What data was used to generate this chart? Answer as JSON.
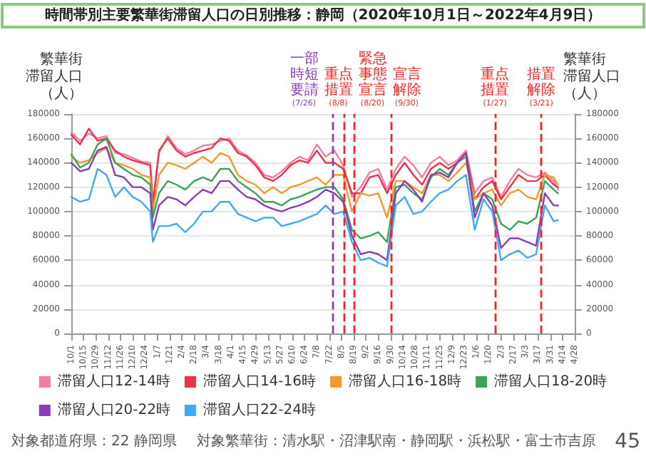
{
  "chart_data": {
    "type": "line",
    "title": "時間帯別主要繁華街滞留人口の日別推移：静岡（2020年10月1日～2022年4月9日）",
    "ylabel": "繁華街滞留人口（人）",
    "y2label": "繁華街滞留人口（人）",
    "annotations": [
      "対象都道府県：22 静岡県",
      "対象繁華街：清水駅・沼津駅南・静岡駅・浜松駅・富士市吉原",
      "45"
    ],
    "x": [
      "2020-10-01",
      "2020-10-11",
      "2020-10-21",
      "2020-10-31",
      "2020-11-10",
      "2020-11-20",
      "2020-11-30",
      "2020-12-10",
      "2020-12-20",
      "2020-12-30",
      "2021-01-02",
      "2021-01-09",
      "2021-01-19",
      "2021-01-29",
      "2021-02-08",
      "2021-02-18",
      "2021-02-28",
      "2021-03-10",
      "2021-03-20",
      "2021-03-30",
      "2021-04-09",
      "2021-04-19",
      "2021-04-29",
      "2021-05-09",
      "2021-05-19",
      "2021-05-29",
      "2021-06-08",
      "2021-06-18",
      "2021-06-28",
      "2021-07-08",
      "2021-07-18",
      "2021-07-28",
      "2021-08-07",
      "2021-08-17",
      "2021-08-27",
      "2021-09-06",
      "2021-09-16",
      "2021-09-26",
      "2021-10-06",
      "2021-10-16",
      "2021-10-26",
      "2021-11-05",
      "2021-11-15",
      "2021-11-25",
      "2021-12-05",
      "2021-12-15",
      "2021-12-25",
      "2022-01-04",
      "2022-01-14",
      "2022-01-24",
      "2022-02-03",
      "2022-02-13",
      "2022-02-23",
      "2022-03-05",
      "2022-03-15",
      "2022-03-25",
      "2022-04-04",
      "2022-04-09"
    ],
    "series": [
      {
        "name": "滞留人口12-14時",
        "color": "#f47ea0",
        "values": [
          165000,
          158000,
          164000,
          160000,
          162000,
          148000,
          147000,
          144000,
          141000,
          140000,
          108000,
          148000,
          162000,
          152000,
          147000,
          150000,
          154000,
          155000,
          158000,
          160000,
          150000,
          146000,
          140000,
          130000,
          128000,
          133000,
          140000,
          145000,
          142000,
          155000,
          145000,
          150000,
          138000,
          112000,
          120000,
          132000,
          135000,
          118000,
          135000,
          145000,
          138000,
          128000,
          140000,
          145000,
          138000,
          142000,
          150000,
          115000,
          125000,
          128000,
          112000,
          125000,
          135000,
          130000,
          128000,
          132000,
          125000,
          118000
        ]
      },
      {
        "name": "滞留人口14-16時",
        "color": "#e8334a",
        "values": [
          163000,
          155000,
          168000,
          158000,
          160000,
          150000,
          145000,
          142000,
          140000,
          138000,
          105000,
          150000,
          160000,
          150000,
          145000,
          148000,
          150000,
          152000,
          160000,
          158000,
          148000,
          145000,
          138000,
          128000,
          125000,
          130000,
          138000,
          142000,
          140000,
          150000,
          140000,
          140000,
          135000,
          115000,
          115000,
          128000,
          130000,
          115000,
          130000,
          140000,
          130000,
          122000,
          135000,
          140000,
          135000,
          140000,
          148000,
          110000,
          120000,
          125000,
          110000,
          120000,
          130000,
          125000,
          125000,
          130000,
          122000,
          120000
        ]
      },
      {
        "name": "滞留人口16-18時",
        "color": "#f39a2d",
        "values": [
          145000,
          140000,
          142000,
          148000,
          152000,
          140000,
          138000,
          135000,
          130000,
          128000,
          100000,
          130000,
          140000,
          138000,
          135000,
          140000,
          145000,
          140000,
          148000,
          145000,
          130000,
          125000,
          122000,
          115000,
          120000,
          115000,
          120000,
          122000,
          125000,
          128000,
          122000,
          130000,
          130000,
          100000,
          115000,
          113000,
          115000,
          95000,
          125000,
          125000,
          120000,
          115000,
          130000,
          130000,
          125000,
          132000,
          140000,
          110000,
          115000,
          118000,
          105000,
          115000,
          118000,
          112000,
          110000,
          130000,
          128000,
          122000
        ]
      },
      {
        "name": "滞留人口18-20時",
        "color": "#3aa55a",
        "values": [
          147000,
          136000,
          140000,
          155000,
          160000,
          140000,
          135000,
          130000,
          128000,
          122000,
          95000,
          115000,
          125000,
          122000,
          118000,
          125000,
          128000,
          125000,
          135000,
          135000,
          125000,
          120000,
          115000,
          108000,
          108000,
          105000,
          110000,
          112000,
          115000,
          118000,
          120000,
          120000,
          110000,
          85000,
          78000,
          80000,
          83000,
          75000,
          120000,
          122000,
          115000,
          110000,
          128000,
          135000,
          130000,
          140000,
          145000,
          100000,
          115000,
          110000,
          90000,
          85000,
          92000,
          90000,
          95000,
          125000,
          118000,
          115000
        ]
      },
      {
        "name": "滞留人口20-22時",
        "color": "#8a3db5",
        "values": [
          140000,
          133000,
          135000,
          150000,
          153000,
          130000,
          128000,
          120000,
          120000,
          115000,
          85000,
          105000,
          112000,
          110000,
          105000,
          112000,
          118000,
          115000,
          125000,
          125000,
          118000,
          112000,
          110000,
          105000,
          102000,
          100000,
          103000,
          105000,
          108000,
          112000,
          118000,
          115000,
          108000,
          80000,
          65000,
          67000,
          65000,
          60000,
          115000,
          125000,
          118000,
          108000,
          130000,
          132000,
          128000,
          140000,
          148000,
          95000,
          115000,
          105000,
          70000,
          78000,
          78000,
          75000,
          72000,
          115000,
          105000,
          105000
        ]
      },
      {
        "name": "滞留人口22-24時",
        "color": "#3fa9f5",
        "values": [
          112000,
          108000,
          110000,
          135000,
          130000,
          112000,
          120000,
          112000,
          108000,
          100000,
          75000,
          88000,
          88000,
          90000,
          83000,
          90000,
          100000,
          100000,
          108000,
          108000,
          98000,
          95000,
          92000,
          95000,
          95000,
          88000,
          90000,
          92000,
          95000,
          98000,
          105000,
          98000,
          100000,
          75000,
          60000,
          62000,
          58000,
          55000,
          105000,
          112000,
          98000,
          100000,
          108000,
          115000,
          118000,
          125000,
          130000,
          85000,
          110000,
          100000,
          60000,
          65000,
          68000,
          62000,
          65000,
          105000,
          92000,
          93000
        ]
      }
    ],
    "xlim": [
      "2020-10-01",
      "2022-04-28"
    ],
    "xticks": [
      {
        "value": "2020-10-01",
        "label": "10/1"
      },
      {
        "value": "2020-10-15",
        "label": "10/15"
      },
      {
        "value": "2020-10-29",
        "label": "10/29"
      },
      {
        "value": "2020-11-12",
        "label": "11/12"
      },
      {
        "value": "2020-11-26",
        "label": "11/26"
      },
      {
        "value": "2020-12-10",
        "label": "12/10"
      },
      {
        "value": "2020-12-24",
        "label": "12/24"
      },
      {
        "value": "2021-01-07",
        "label": "1/7"
      },
      {
        "value": "2021-01-21",
        "label": "1/21"
      },
      {
        "value": "2021-02-04",
        "label": "2/4"
      },
      {
        "value": "2021-02-18",
        "label": "2/18"
      },
      {
        "value": "2021-03-04",
        "label": "3/4"
      },
      {
        "value": "2021-03-18",
        "label": "3/18"
      },
      {
        "value": "2021-04-01",
        "label": "4/1"
      },
      {
        "value": "2021-04-15",
        "label": "4/15"
      },
      {
        "value": "2021-04-29",
        "label": "4/29"
      },
      {
        "value": "2021-05-13",
        "label": "5/13"
      },
      {
        "value": "2021-05-27",
        "label": "5/27"
      },
      {
        "value": "2021-06-10",
        "label": "6/10"
      },
      {
        "value": "2021-06-24",
        "label": "6/24"
      },
      {
        "value": "2021-07-08",
        "label": "7/8"
      },
      {
        "value": "2021-07-22",
        "label": "7/22"
      },
      {
        "value": "2021-08-05",
        "label": "8/5"
      },
      {
        "value": "2021-08-19",
        "label": "8/19"
      },
      {
        "value": "2021-09-02",
        "label": "9/2"
      },
      {
        "value": "2021-09-16",
        "label": "9/16"
      },
      {
        "value": "2021-09-30",
        "label": "9/30"
      },
      {
        "value": "2021-10-14",
        "label": "10/14"
      },
      {
        "value": "2021-10-28",
        "label": "10/28"
      },
      {
        "value": "2021-11-11",
        "label": "11/11"
      },
      {
        "value": "2021-11-25",
        "label": "11/25"
      },
      {
        "value": "2021-12-09",
        "label": "12/9"
      },
      {
        "value": "2021-12-23",
        "label": "12/23"
      },
      {
        "value": "2022-01-06",
        "label": "1/6"
      },
      {
        "value": "2022-01-20",
        "label": "1/20"
      },
      {
        "value": "2022-02-03",
        "label": "2/3"
      },
      {
        "value": "2022-02-17",
        "label": "2/17"
      },
      {
        "value": "2022-03-03",
        "label": "3/3"
      },
      {
        "value": "2022-03-17",
        "label": "3/17"
      },
      {
        "value": "2022-03-31",
        "label": "3/31"
      },
      {
        "value": "2022-04-14",
        "label": "4/14"
      },
      {
        "value": "2022-04-28",
        "label": "4/28"
      }
    ],
    "ylim": [
      0,
      180000
    ],
    "yticks": [
      0,
      20000,
      40000,
      60000,
      80000,
      100000,
      120000,
      140000,
      160000,
      180000
    ],
    "y2lim": [
      0,
      180000
    ],
    "y2ticks": [
      0,
      20000,
      40000,
      60000,
      80000,
      100000,
      120000,
      140000,
      160000,
      180000
    ],
    "ref_lines": [
      {
        "axis": "x",
        "value": "2021-07-26",
        "label": "一部時短要請(7/26)",
        "color": "#8a3db5",
        "line_style": "dashed"
      },
      {
        "axis": "x",
        "value": "2021-08-08",
        "label": "重点措置(8/8)",
        "color": "#ff2020",
        "line_style": "dashed"
      },
      {
        "axis": "x",
        "value": "2021-08-20",
        "label": "緊急事態宣言(8/20)",
        "color": "#ff2020",
        "line_style": "dashed"
      },
      {
        "axis": "x",
        "value": "2021-09-30",
        "label": "宣言解除(9/30)",
        "color": "#ff2020",
        "line_style": "dashed"
      },
      {
        "axis": "x",
        "value": "2022-01-27",
        "label": "重点措置(1/27)",
        "color": "#ff2020",
        "line_style": "dashed"
      },
      {
        "axis": "x",
        "value": "2022-03-21",
        "label": "措置解除(3/21)",
        "color": "#ff2020",
        "line_style": "dashed"
      }
    ],
    "grid": "y",
    "legend": "bottom"
  }
}
